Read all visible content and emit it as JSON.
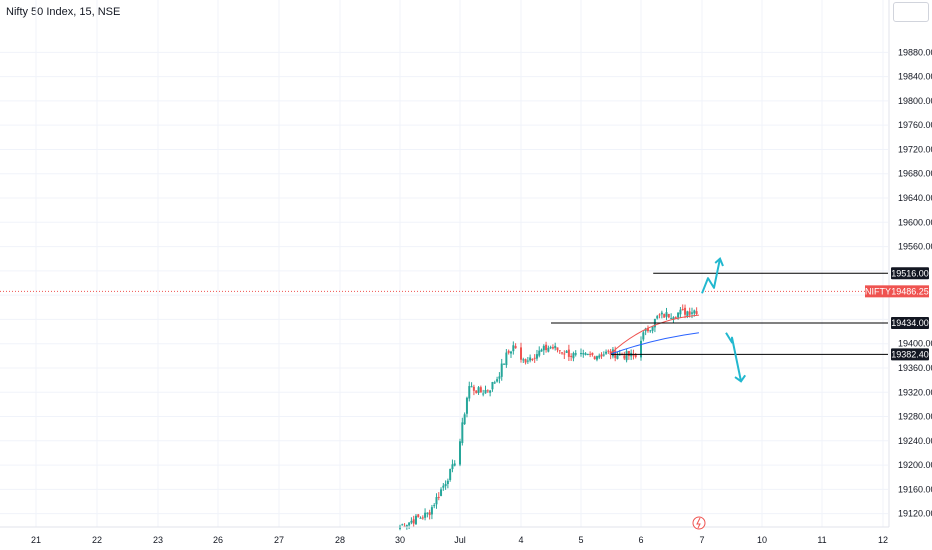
{
  "header": {
    "title": "Nifty 50 Index, 15, NSE"
  },
  "colors": {
    "up": "#26a69a",
    "down": "#ef5350",
    "grid": "#f0f3fa",
    "axis_text": "#131722",
    "level_line": "#000000",
    "price_line": "#ef5350",
    "ema_fast": "#ef5350",
    "ema_slow": "#2962ff",
    "annotation_arrow": "#22b8cf"
  },
  "chart_data": {
    "type": "candlestick",
    "title": "Nifty 50 Index, 15, NSE",
    "x_tick_labels": [
      "21",
      "22",
      "23",
      "26",
      "27",
      "28",
      "30",
      "Jul",
      "4",
      "5",
      "6",
      "7",
      "10",
      "11",
      "12"
    ],
    "y_tick_labels": [
      "19880.00",
      "19840.00",
      "19800.00",
      "19760.00",
      "19720.00",
      "19680.00",
      "19640.00",
      "19600.00",
      "19560.00",
      "19400.00",
      "19360.00",
      "19320.00",
      "19280.00",
      "19240.00",
      "19200.00",
      "19160.00",
      "19120.00"
    ],
    "ylim": [
      19098,
      19930
    ],
    "grid": true,
    "levels": [
      {
        "label": "19516.00",
        "value": 19516.0
      },
      {
        "label": "19434.00",
        "value": 19434.0
      },
      {
        "label": "19382.40",
        "value": 19382.4
      }
    ],
    "last_price": {
      "symbol": "NIFTY",
      "label": "19486.25",
      "value": 19486.25
    },
    "annotations": [
      {
        "type": "arrow",
        "direction": "up"
      },
      {
        "type": "arrow",
        "direction": "down"
      }
    ],
    "candle_anchors_close": [
      [
        30.0,
        19100
      ],
      [
        30.5,
        19120
      ],
      [
        30.95,
        19200
      ],
      [
        31.0,
        19240
      ],
      [
        31.3,
        19330
      ],
      [
        31.7,
        19320
      ],
      [
        32.0,
        19325
      ],
      [
        32.3,
        19345
      ],
      [
        32.6,
        19380
      ],
      [
        32.9,
        19400
      ],
      [
        33.0,
        19370
      ],
      [
        33.5,
        19395
      ],
      [
        34.0,
        19378
      ],
      [
        34.5,
        19385
      ],
      [
        35.0,
        19378
      ],
      [
        35.5,
        19385
      ],
      [
        36.0,
        19410
      ],
      [
        36.3,
        19445
      ],
      [
        36.6,
        19450
      ],
      [
        36.9,
        19455
      ]
    ]
  }
}
